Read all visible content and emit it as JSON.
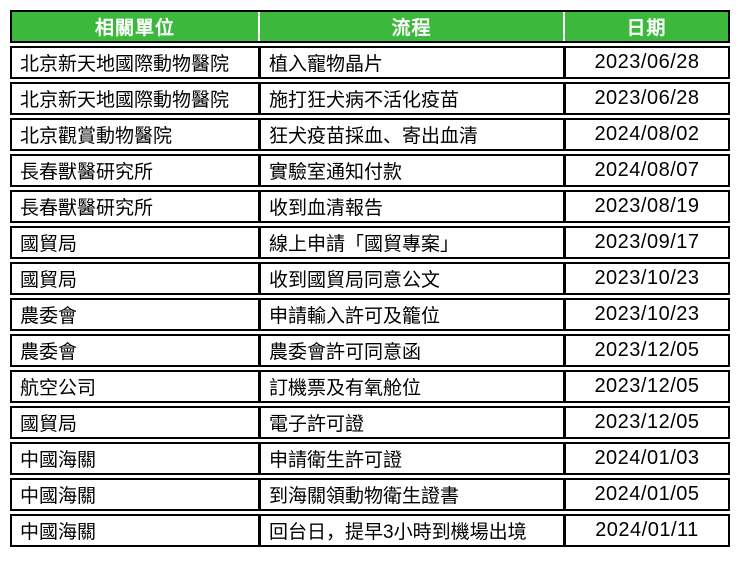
{
  "table": {
    "headers": [
      "相關單位",
      "流程",
      "日期"
    ],
    "rows": [
      {
        "unit": "北京新天地國際動物醫院",
        "process": "植入寵物晶片",
        "date": "2023/06/28"
      },
      {
        "unit": "北京新天地國際動物醫院",
        "process": "施打狂犬病不活化疫苗",
        "date": "2023/06/28"
      },
      {
        "unit": "北京觀賞動物醫院",
        "process": "狂犬疫苗採血、寄出血清",
        "date": "2024/08/02"
      },
      {
        "unit": "長春獸醫研究所",
        "process": "實驗室通知付款",
        "date": "2024/08/07"
      },
      {
        "unit": "長春獸醫研究所",
        "process": "收到血清報告",
        "date": "2023/08/19"
      },
      {
        "unit": "國貿局",
        "process": "線上申請「國貿專案」",
        "date": "2023/09/17"
      },
      {
        "unit": "國貿局",
        "process": "收到國貿局同意公文",
        "date": "2023/10/23"
      },
      {
        "unit": "農委會",
        "process": "申請輸入許可及籠位",
        "date": "2023/10/23"
      },
      {
        "unit": "農委會",
        "process": "農委會許可同意函",
        "date": "2023/12/05"
      },
      {
        "unit": "航空公司",
        "process": "訂機票及有氧舱位",
        "date": "2023/12/05"
      },
      {
        "unit": "國貿局",
        "process": "電子許可證",
        "date": "2023/12/05"
      },
      {
        "unit": "中國海關",
        "process": "申請衛生許可證",
        "date": "2024/01/03"
      },
      {
        "unit": "中國海關",
        "process": "到海關領動物衛生證書",
        "date": "2024/01/05"
      },
      {
        "unit": "中國海關",
        "process": "回台日，提早3小時到機場出境",
        "date": "2024/01/11"
      }
    ]
  },
  "colors": {
    "header_bg": "#3CB93C",
    "header_text": "#FFFFFF",
    "border": "#000000",
    "text": "#000000",
    "page_bg": "#FFFFFF"
  }
}
